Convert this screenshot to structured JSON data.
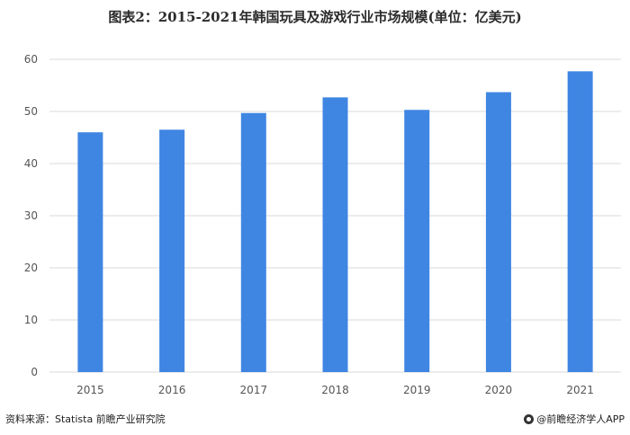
{
  "header": {
    "title": "图表2：2015-2021年韩国玩具及游戏行业市场规模(单位：亿美元)"
  },
  "footer": {
    "source": "资料来源：Statista 前瞻产业研究院",
    "brand": "@前瞻经济学人APP"
  },
  "colors": {
    "bar": "#3f86e3",
    "grid": "#d9d9d9",
    "axis_text": "#555555"
  },
  "chart_data": {
    "type": "bar",
    "title": "图表2：2015-2021年韩国玩具及游戏行业市场规模(单位：亿美元)",
    "categories": [
      "2015",
      "2016",
      "2017",
      "2018",
      "2019",
      "2020",
      "2021"
    ],
    "values": [
      46,
      46.5,
      49.7,
      52.7,
      50.3,
      53.7,
      57.7
    ],
    "xlabel": "",
    "ylabel": "",
    "ylim": [
      0,
      60
    ],
    "yticks": [
      0,
      10,
      20,
      30,
      40,
      50,
      60
    ],
    "grid": true
  }
}
